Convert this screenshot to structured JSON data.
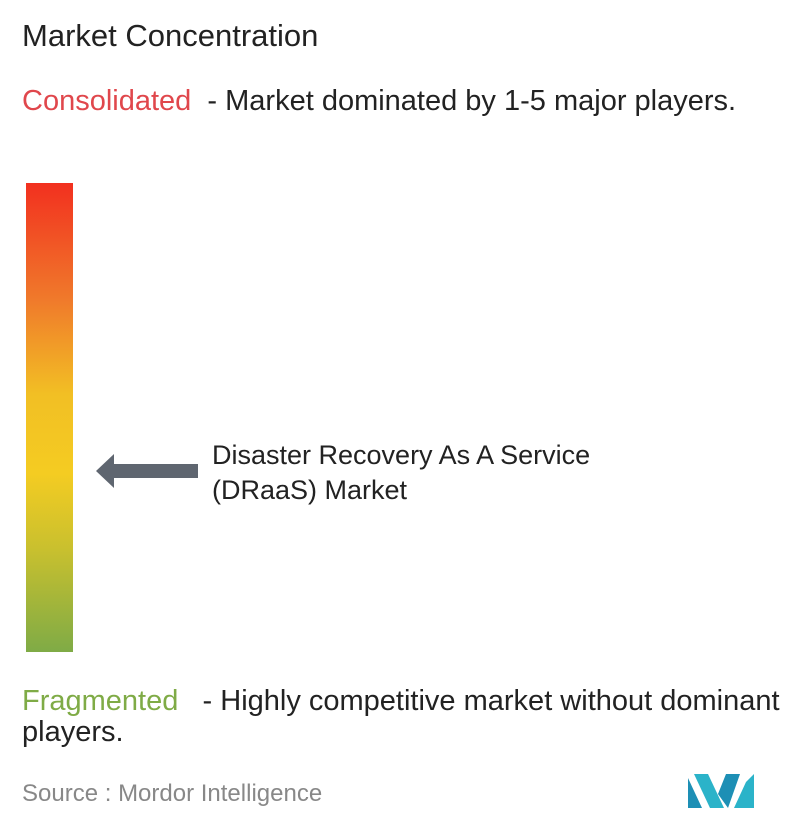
{
  "title": "Market Concentration",
  "consolidated": {
    "label": "Consolidated",
    "description": "- Market dominated by 1-5 major players."
  },
  "market": {
    "label": "Disaster Recovery As A Service (DRaaS) Market"
  },
  "fragmented": {
    "label": "Fragmented",
    "description": "- Highly competitive market without dominant players."
  },
  "source": {
    "label": "Source :",
    "name": "Mordor Intelligence"
  }
}
